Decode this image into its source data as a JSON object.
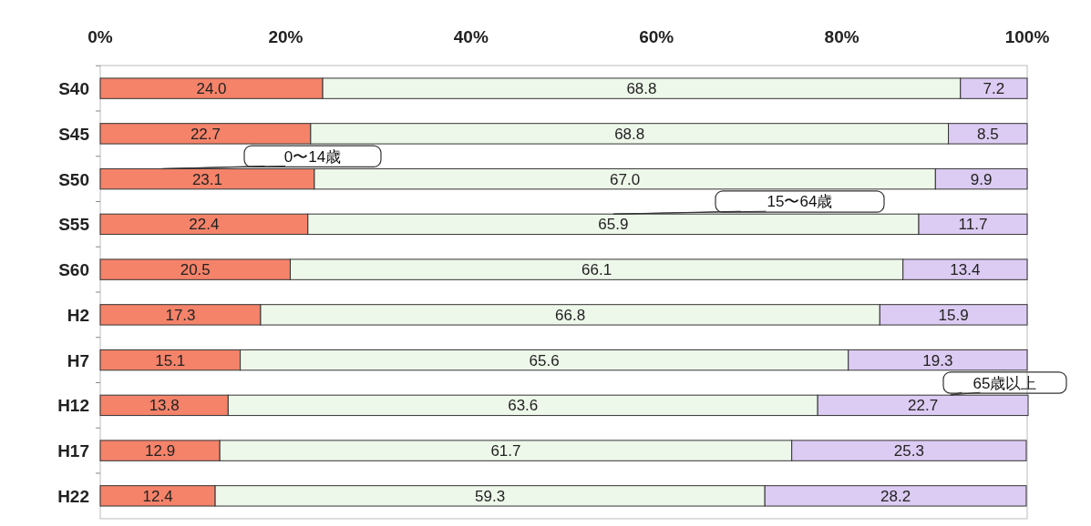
{
  "chart_data": {
    "type": "bar",
    "orientation": "horizontal",
    "stacked": true,
    "categories": [
      "S40",
      "S45",
      "S50",
      "S55",
      "S60",
      "H2",
      "H7",
      "H12",
      "H17",
      "H22"
    ],
    "series": [
      {
        "name": "0〜14歳",
        "color": "#f4836a",
        "values": [
          24.0,
          22.7,
          23.1,
          22.4,
          20.5,
          17.3,
          15.1,
          13.8,
          12.9,
          12.4
        ],
        "value_labels": [
          "24.0",
          "22.7",
          "23.1",
          "22.4",
          "20.5",
          "17.3",
          "15.1",
          "13.8",
          "12.9",
          "12.4"
        ]
      },
      {
        "name": "15〜64歳",
        "color": "#eef8ea",
        "values": [
          68.8,
          68.8,
          67.0,
          65.9,
          66.1,
          66.8,
          65.6,
          63.6,
          61.7,
          59.3
        ],
        "value_labels": [
          "68.8",
          "68.8",
          "67.0",
          "65.9",
          "66.1",
          "66.8",
          "65.6",
          "63.6",
          "61.7",
          "59.3"
        ]
      },
      {
        "name": "65歳以上",
        "color": "#dccbf2",
        "values": [
          7.2,
          8.5,
          9.9,
          11.7,
          13.4,
          15.9,
          19.3,
          22.7,
          25.3,
          28.2
        ],
        "value_labels": [
          "7.2",
          "8.5",
          "9.9",
          "11.7",
          "13.4",
          "15.9",
          "19.3",
          "22.7",
          "25.3",
          "28.2"
        ]
      }
    ],
    "xlim": [
      0,
      100
    ],
    "xticks": [
      {
        "value": 0,
        "label": "0%"
      },
      {
        "value": 20,
        "label": "20%"
      },
      {
        "value": 40,
        "label": "40%"
      },
      {
        "value": 60,
        "label": "60%"
      },
      {
        "value": 80,
        "label": "80%"
      },
      {
        "value": 100,
        "label": "100%"
      }
    ],
    "grid": false,
    "legend": false
  }
}
